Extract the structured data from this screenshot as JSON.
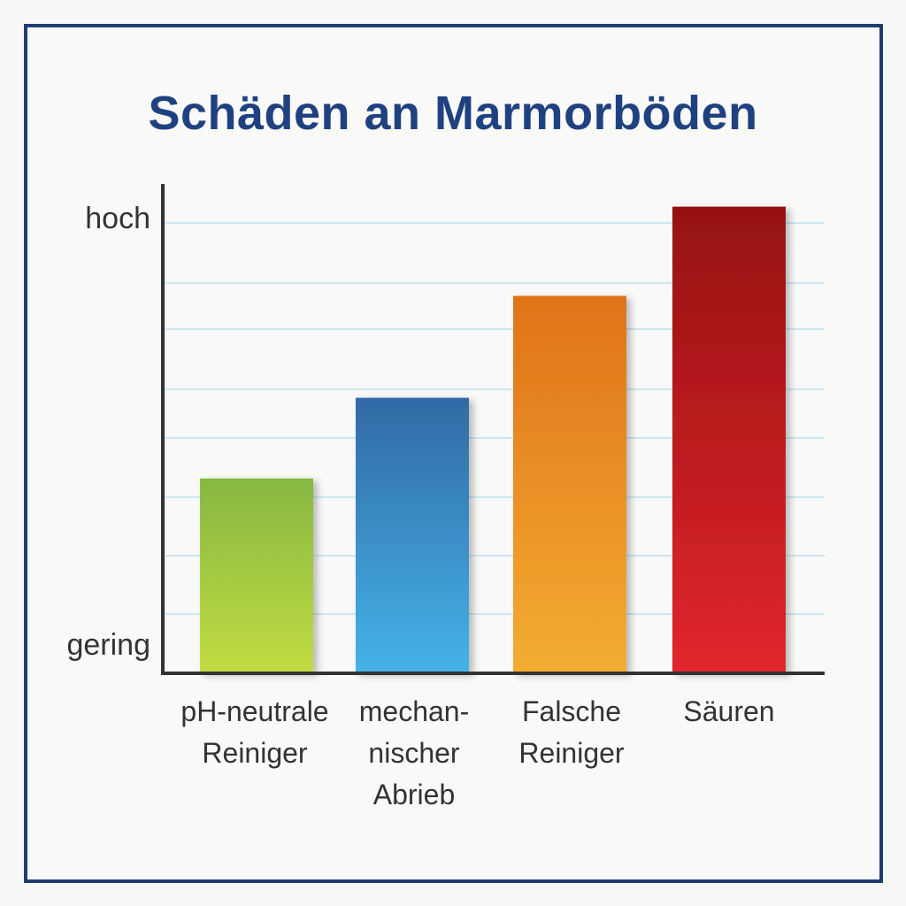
{
  "chart_data": {
    "type": "bar",
    "title": "Schäden an Marmorböden",
    "xlabel": "",
    "ylabel": "",
    "y_tick_labels": [
      "gering",
      "hoch"
    ],
    "categories": [
      [
        "pH-neutrale",
        "Reiniger"
      ],
      [
        "mechan-",
        "nischer",
        "Abrieb"
      ],
      [
        "Falsche",
        "Reiniger"
      ],
      [
        "Säuren"
      ]
    ],
    "values": [
      0.39,
      0.58,
      0.82,
      1.03
    ],
    "ylim": [
      0,
      1
    ],
    "grid": true,
    "legend": "none",
    "bar_colors": [
      {
        "top": "#86b843",
        "bottom": "#c2dc43"
      },
      {
        "top": "#316aa6",
        "bottom": "#45b3e6"
      },
      {
        "top": "#e07319",
        "bottom": "#f3ac33"
      },
      {
        "top": "#961111",
        "bottom": "#e0262d"
      }
    ],
    "grid_color": "#bfe2ef",
    "axis_color": "#333333"
  }
}
